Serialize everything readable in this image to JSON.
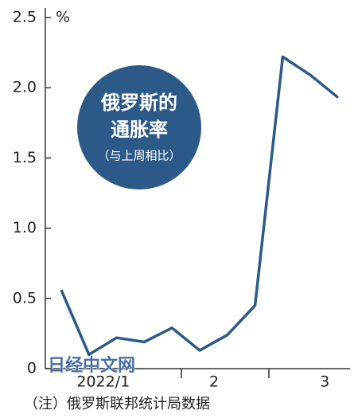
{
  "chart_data": {
    "type": "line",
    "title_lines": [
      "俄罗斯的",
      "通胀率",
      "（与上周相比）"
    ],
    "unit": "%",
    "note": "（注）俄罗斯联邦统计局数据",
    "watermark": "日经中文网",
    "categories": [
      null,
      "2022/1",
      null,
      null,
      null,
      "2",
      null,
      null,
      null,
      "3",
      null
    ],
    "values": [
      0.56,
      0.1,
      0.22,
      0.19,
      0.29,
      0.13,
      0.24,
      0.45,
      2.22,
      2.09,
      1.93
    ],
    "color": "#2c5a88",
    "ylim": [
      0,
      2.5
    ],
    "yticks": [
      0,
      0.5,
      {
        "value": 1,
        "label": "1.0"
      },
      1.5,
      {
        "value": 2,
        "label": "2.0"
      },
      2.5
    ]
  }
}
